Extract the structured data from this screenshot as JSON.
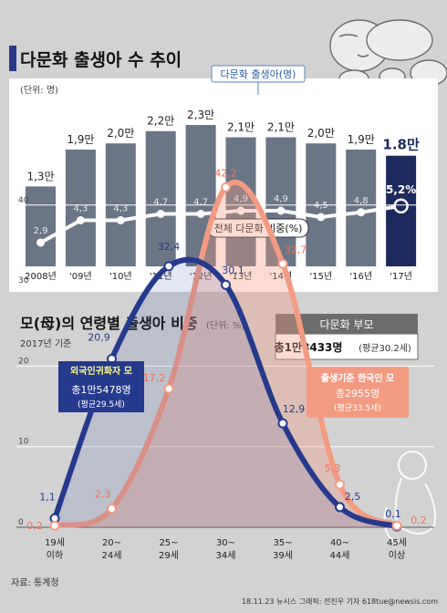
{
  "chart_data": [
    {
      "type": "bar",
      "title": "다문화 출생아 수 추이",
      "unit_label": "(단위: 명)",
      "categories": [
        "2008년",
        "'09년",
        "'10년",
        "'11년",
        "'12년",
        "'13년",
        "'14년",
        "'15년",
        "'16년",
        "'17년"
      ],
      "series": [
        {
          "name": "다문화 출생아(명)",
          "values": [
            13000,
            19000,
            20000,
            22000,
            23000,
            21000,
            21000,
            20000,
            19000,
            18000
          ],
          "labels": [
            "1,3만",
            "1,9만",
            "2,0만",
            "2,2만",
            "2,3만",
            "2,1만",
            "2,1만",
            "2,0만",
            "1,9만",
            "1.8만"
          ]
        },
        {
          "name": "전체 다문화 비중(%)",
          "type": "line",
          "values": [
            2.9,
            4.3,
            4.3,
            4.7,
            4.7,
            4.9,
            4.9,
            4.5,
            4.8,
            5.2
          ],
          "labels": [
            "2,9",
            "4,3",
            "4,3",
            "4,7",
            "4,7",
            "4,9",
            "4,9",
            "4,5",
            "4,8",
            "5,2%"
          ]
        }
      ],
      "legend": [
        "다문화 출생아(명)",
        "전체 다문화 비중(%)"
      ]
    },
    {
      "type": "area",
      "title": "모(母)의 연령별 출생아 비중",
      "unit_label": "(단위: %)",
      "subtitle": "2017년 기준",
      "categories": [
        "19세 이하",
        "20~24세",
        "25~29세",
        "30~34세",
        "35~39세",
        "40~44세",
        "45세 이상"
      ],
      "x_labels": [
        [
          "19세",
          "이하"
        ],
        [
          "20~",
          "24세"
        ],
        [
          "25~",
          "29세"
        ],
        [
          "30~",
          "34세"
        ],
        [
          "35~",
          "39세"
        ],
        [
          "40~",
          "44세"
        ],
        [
          "45세",
          "이상"
        ]
      ],
      "yticks": [
        0,
        10,
        20,
        30,
        40
      ],
      "ylim": [
        0,
        45
      ],
      "grid": true,
      "series": [
        {
          "name": "외국인귀화자 모",
          "values": [
            1.1,
            20.9,
            32.4,
            30.1,
            12.9,
            2.5,
            0.1
          ],
          "labels": [
            "1,1",
            "20,9",
            "32,4",
            "30,1",
            "12,9",
            "2,5",
            "0,1"
          ],
          "box": {
            "title": "외국인귀화자 모",
            "count": "총1만5478명",
            "avg": "(평균29.5세)"
          }
        },
        {
          "name": "출생기준 한국인 모",
          "values": [
            0.2,
            2.3,
            17.2,
            42.2,
            32.7,
            5.3,
            0.2
          ],
          "labels": [
            "0,2",
            "2,3",
            "17,2",
            "42,2",
            "32,7",
            "5,3",
            "0,2"
          ],
          "box": {
            "title": "출생기준 한국인 모",
            "count": "총2955명",
            "avg": "(평균33.5세)"
          }
        }
      ],
      "info_box": {
        "title": "다문화 부모",
        "count": "총1만8433명",
        "avg": "(평균30.2세)"
      }
    }
  ],
  "source": "자료: 통계청",
  "credit": "18.11.23  뉴시스 그래픽: 전진우 기자 618tue@newsis.com",
  "colors": {
    "bar": "#6a7586",
    "bar_highlight": "#1d2a5e",
    "navy": "#253a8c",
    "salmon": "#f39b82",
    "panel": "#ffffff",
    "background": "#d2d2d2"
  }
}
